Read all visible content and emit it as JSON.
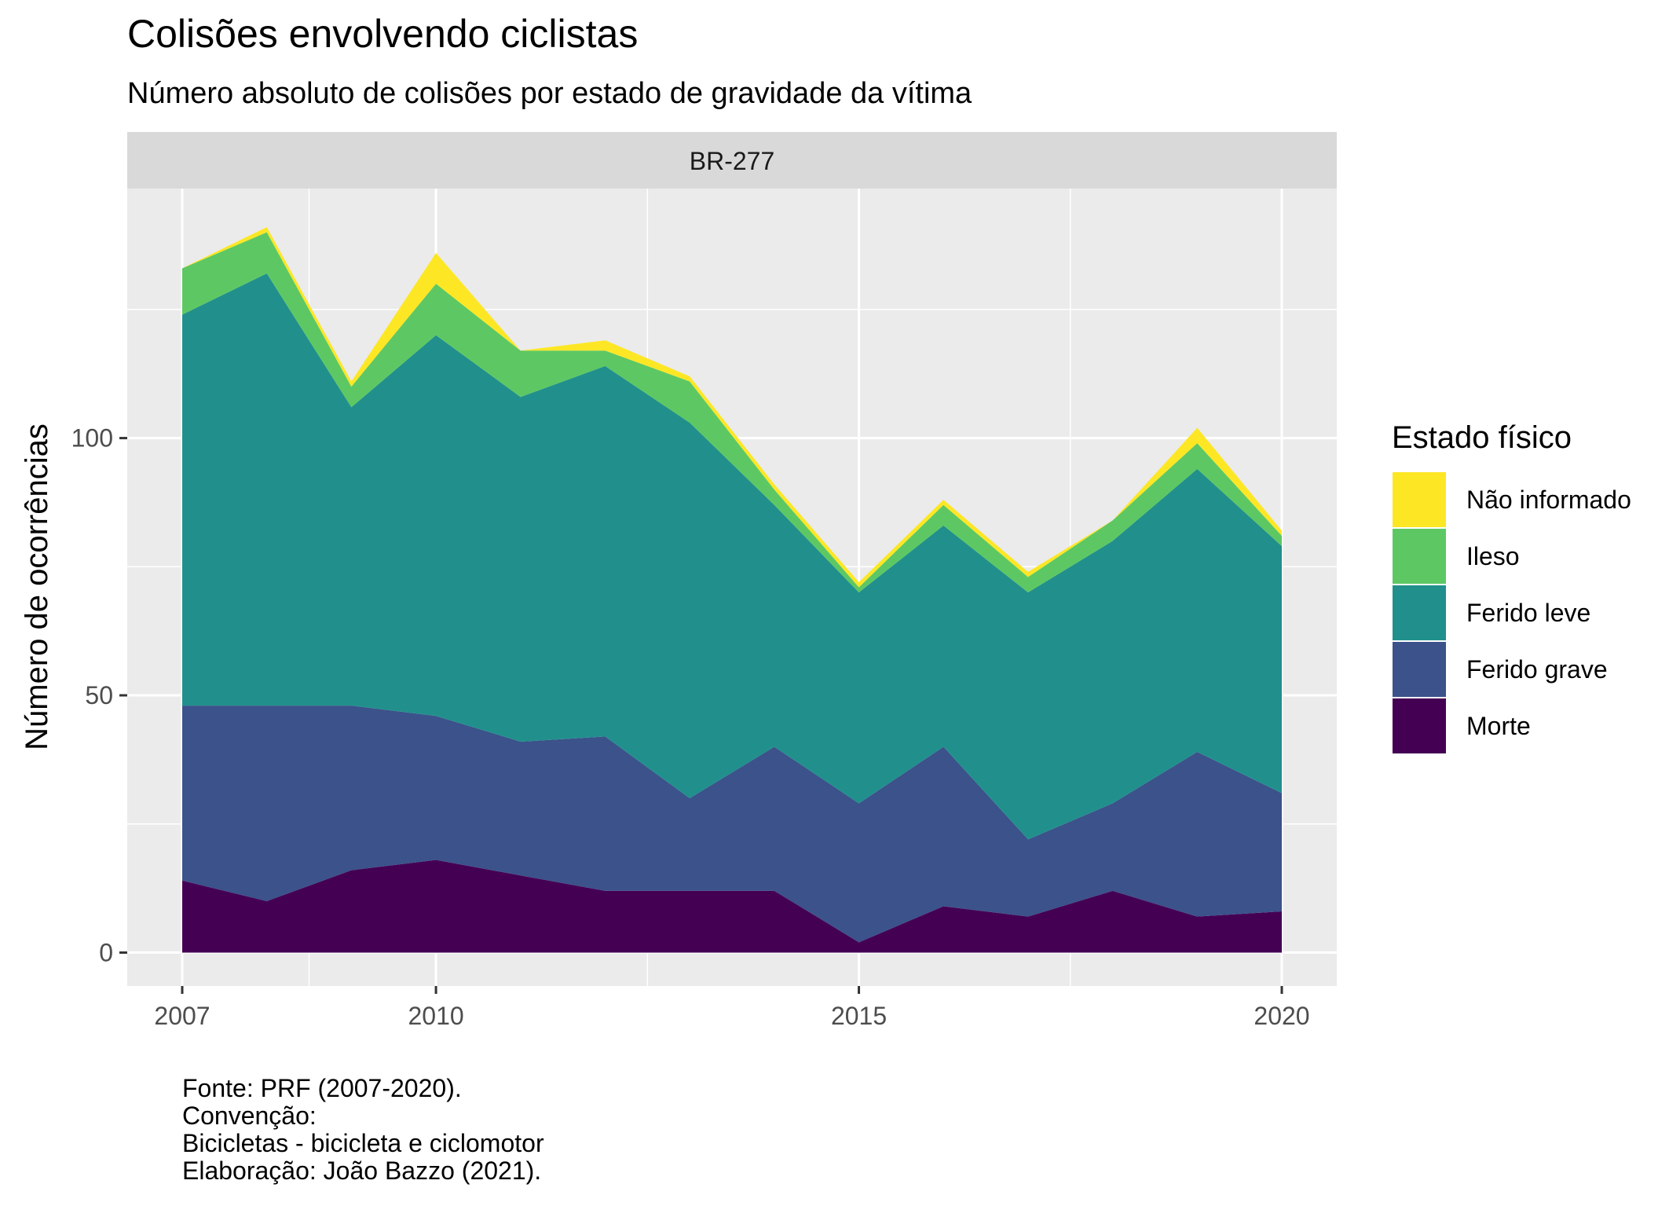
{
  "chart_data": {
    "type": "area",
    "stacked": true,
    "title": "Colisões envolvendo ciclistas",
    "subtitle": "Número absoluto de colisões por estado de gravidade da vítima",
    "facet_label": "BR-277",
    "xlabel": "",
    "ylabel": "Número de ocorrências",
    "x": [
      2007,
      2008,
      2009,
      2010,
      2011,
      2012,
      2013,
      2014,
      2015,
      2016,
      2017,
      2018,
      2019,
      2020
    ],
    "x_ticks": [
      2007,
      2010,
      2015,
      2020
    ],
    "y_ticks": [
      0,
      50,
      100
    ],
    "xlim": [
      2006.35,
      2020.65
    ],
    "ylim": [
      -6.5,
      148.5
    ],
    "grid": true,
    "legend_title": "Estado físico",
    "legend_position": "right",
    "series": [
      {
        "name": "Morte",
        "color": "#440154",
        "values": [
          14,
          10,
          16,
          18,
          15,
          12,
          12,
          12,
          2,
          9,
          7,
          12,
          7,
          8
        ]
      },
      {
        "name": "Ferido grave",
        "color": "#3B528B",
        "values": [
          34,
          38,
          32,
          28,
          26,
          30,
          18,
          28,
          27,
          31,
          15,
          17,
          32,
          23
        ]
      },
      {
        "name": "Ferido leve",
        "color": "#21908C",
        "values": [
          76,
          84,
          58,
          74,
          67,
          72,
          73,
          47,
          41,
          43,
          48,
          51,
          55,
          48
        ]
      },
      {
        "name": "Ileso",
        "color": "#5DC863",
        "values": [
          9,
          8,
          4,
          10,
          9,
          3,
          8,
          3,
          1,
          4,
          3,
          4,
          5,
          2
        ]
      },
      {
        "name": "Não informado",
        "color": "#FDE725",
        "values": [
          0,
          1,
          1,
          6,
          0,
          2,
          1,
          1,
          1,
          1,
          1,
          0,
          3,
          1
        ]
      }
    ],
    "caption": [
      "Fonte: PRF (2007-2020).",
      "Convenção:",
      "Bicicletas - bicicleta e ciclomotor",
      "Elaboração: João Bazzo (2021)."
    ]
  }
}
